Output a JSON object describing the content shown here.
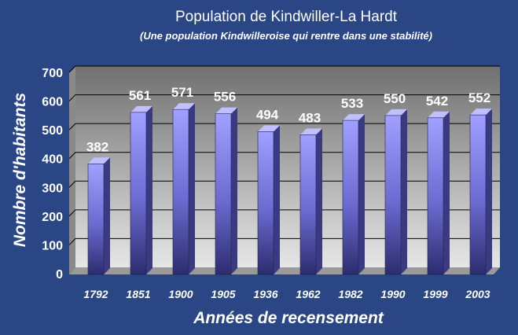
{
  "chart_data": {
    "type": "bar",
    "title": "Population de Kindwiller-La Hardt",
    "subtitle": "(Une population Kindwilleroise qui rentre dans une stabilité)",
    "xlabel": "Années de recensement",
    "ylabel": "Nombre d'habitants",
    "categories": [
      "1792",
      "1851",
      "1900",
      "1905",
      "1936",
      "1962",
      "1982",
      "1990",
      "1999",
      "2003"
    ],
    "values": [
      382,
      561,
      571,
      556,
      494,
      483,
      533,
      550,
      542,
      552
    ],
    "ylim": [
      0,
      700
    ],
    "yticks": [
      0,
      100,
      200,
      300,
      400,
      500,
      600,
      700
    ],
    "grid": true,
    "data_labels": true,
    "colors": {
      "background": "#2a4684",
      "plot_top": "#707070",
      "plot_bottom": "#e6e6e6",
      "bar_top": "#a0a0ff",
      "bar_bottom": "#2c2c6e",
      "text": "#ffffff"
    }
  }
}
